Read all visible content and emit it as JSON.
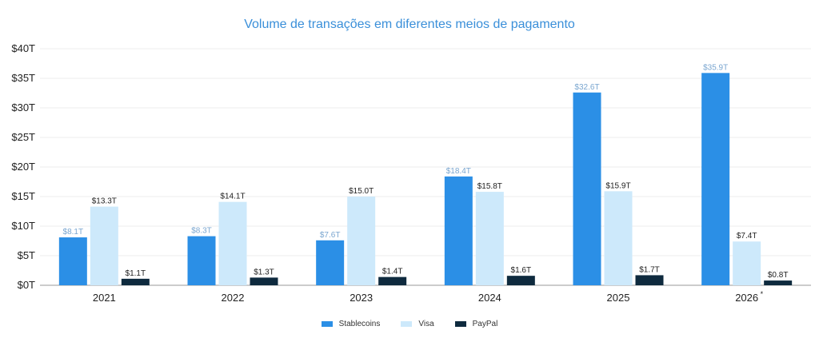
{
  "chart_data": {
    "type": "bar",
    "title": "Volume de transações em diferentes meios de pagamento",
    "categories": [
      "2021",
      "2022",
      "2023",
      "2024",
      "2025",
      "2026"
    ],
    "category_note": {
      "2026": "*"
    },
    "series": [
      {
        "name": "Stablecoins",
        "color": "#2b8fe6",
        "label_color": "#7aa6d0",
        "values": [
          8.1,
          8.3,
          7.6,
          18.4,
          32.6,
          35.9
        ],
        "labels": [
          "$8.1T",
          "$8.3T",
          "$7.6T",
          "$18.4T",
          "$32.6T",
          "$35.9T"
        ]
      },
      {
        "name": "Visa",
        "color": "#cde9fb",
        "label_color": "#222222",
        "values": [
          13.3,
          14.1,
          15.0,
          15.8,
          15.9,
          7.4
        ],
        "labels": [
          "$13.3T",
          "$14.1T",
          "$15.0T",
          "$15.8T",
          "$15.9T",
          "$7.4T"
        ]
      },
      {
        "name": "PayPal",
        "color": "#0e2a3e",
        "label_color": "#222222",
        "values": [
          1.1,
          1.3,
          1.4,
          1.6,
          1.7,
          0.8
        ],
        "labels": [
          "$1.1T",
          "$1.3T",
          "$1.4T",
          "$1.6T",
          "$1.7T",
          "$0.8T"
        ]
      }
    ],
    "yticks": [
      "$0T",
      "$5T",
      "$10T",
      "$15T",
      "$20T",
      "$25T",
      "$30T",
      "$35T",
      "$40T"
    ],
    "ylim": [
      0,
      40
    ],
    "grid": true,
    "legend_position": "bottom-center"
  }
}
